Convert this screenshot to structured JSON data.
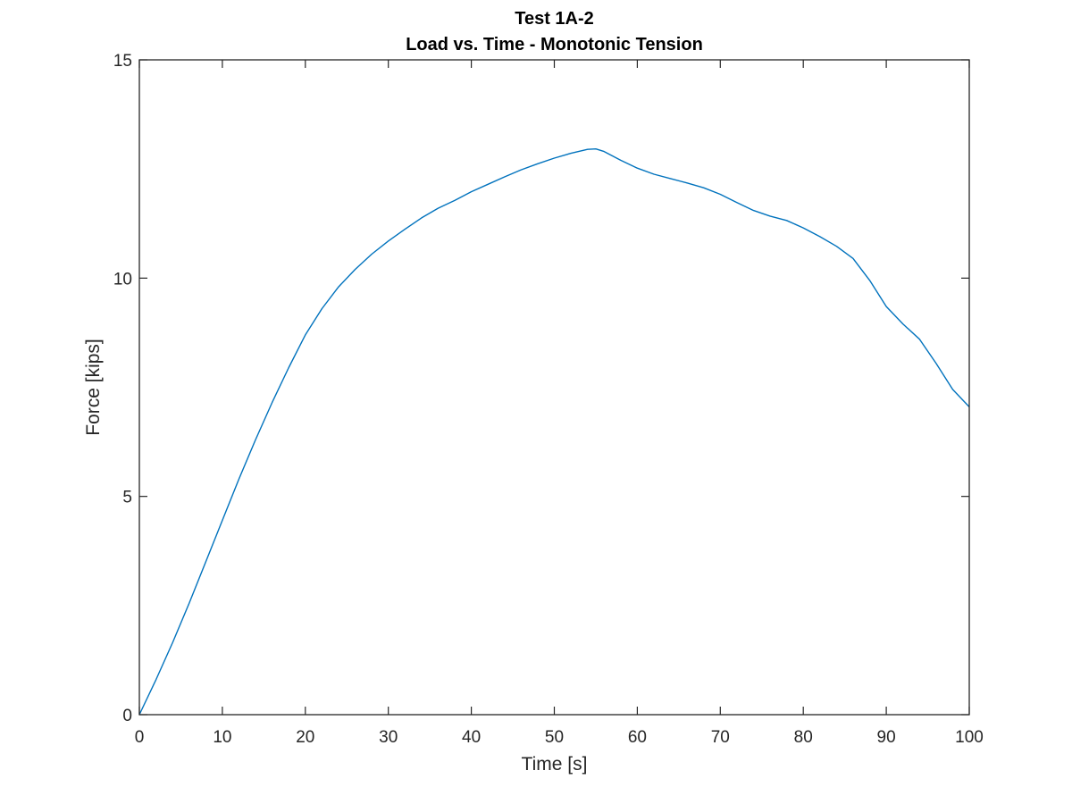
{
  "chart_data": {
    "type": "line",
    "title": "Test 1A-2",
    "subtitle": "Load vs. Time - Monotonic Tension",
    "xlabel": "Time [s]",
    "ylabel": "Force [kips]",
    "xlim": [
      0,
      100
    ],
    "ylim": [
      0,
      15
    ],
    "xticks": [
      0,
      10,
      20,
      30,
      40,
      50,
      60,
      70,
      80,
      90,
      100
    ],
    "yticks": [
      0,
      5,
      10,
      15
    ],
    "grid": false,
    "line_color": "#0072BD",
    "series": [
      {
        "x": [
          0,
          2,
          4,
          6,
          8,
          10,
          12,
          14,
          16,
          18,
          20,
          22,
          24,
          26,
          28,
          30,
          32,
          34,
          36,
          38,
          40,
          42,
          44,
          46,
          48,
          50,
          52,
          54,
          55,
          56,
          58,
          60,
          62,
          64,
          66,
          68,
          70,
          72,
          74,
          76,
          78,
          80,
          82,
          84,
          86,
          88,
          90,
          92,
          94,
          96,
          98,
          100
        ],
        "y": [
          0,
          0.8,
          1.65,
          2.55,
          3.5,
          4.45,
          5.4,
          6.3,
          7.15,
          7.95,
          8.7,
          9.3,
          9.8,
          10.2,
          10.55,
          10.85,
          11.12,
          11.38,
          11.6,
          11.78,
          11.98,
          12.15,
          12.32,
          12.48,
          12.62,
          12.75,
          12.86,
          12.95,
          12.96,
          12.9,
          12.7,
          12.52,
          12.38,
          12.28,
          12.18,
          12.07,
          11.92,
          11.73,
          11.55,
          11.42,
          11.32,
          11.15,
          10.95,
          10.73,
          10.45,
          9.95,
          9.35,
          8.95,
          8.6,
          8.05,
          7.45,
          7.05
        ]
      }
    ]
  }
}
